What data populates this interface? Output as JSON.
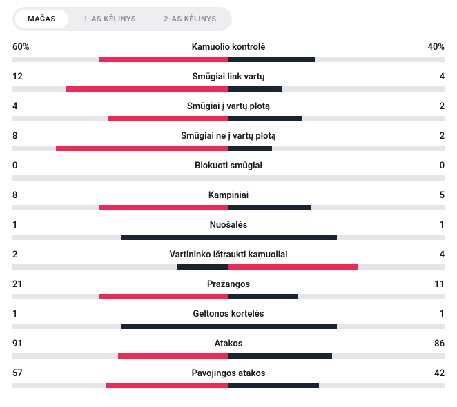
{
  "colors": {
    "track": "#e6e6ea",
    "home": "#ef2855",
    "away": "#1a2332"
  },
  "tabs": [
    {
      "label": "MAČAS",
      "active": true
    },
    {
      "label": "1-AS KĖLINYS",
      "active": false
    },
    {
      "label": "2-AS KĖLINYS",
      "active": false
    }
  ],
  "stats": [
    {
      "label": "Kamuolio kontrolė",
      "home": "60%",
      "away": "40%",
      "home_pct": 30.0,
      "away_pct": 20.0
    },
    {
      "label": "Smūgiai link vartų",
      "home": "12",
      "away": "4",
      "home_pct": 37.5,
      "away_pct": 12.5
    },
    {
      "label": "Smūgiai į vartų plotą",
      "home": "4",
      "away": "2",
      "home_pct": 28.0,
      "away_pct": 17.0
    },
    {
      "label": "Smūgiai ne į vartų plotą",
      "home": "8",
      "away": "2",
      "home_pct": 40.0,
      "away_pct": 10.0
    },
    {
      "label": "Blokuoti smūgiai",
      "home": "0",
      "away": "0",
      "home_pct": 0.0,
      "away_pct": 0.0
    },
    {
      "label": "Kampiniai",
      "home": "8",
      "away": "5",
      "home_pct": 30.0,
      "away_pct": 19.0
    },
    {
      "label": "Nuošalės",
      "home": "1",
      "away": "1",
      "home_pct": 25.0,
      "away_pct": 25.0
    },
    {
      "label": "Vartininko ištraukti kamuoliai",
      "home": "2",
      "away": "4",
      "home_pct": 12.0,
      "away_pct": 30.0
    },
    {
      "label": "Pražangos",
      "home": "21",
      "away": "11",
      "home_pct": 30.0,
      "away_pct": 16.0
    },
    {
      "label": "Geltonos kortelės",
      "home": "1",
      "away": "1",
      "home_pct": 25.0,
      "away_pct": 25.0
    },
    {
      "label": "Atakos",
      "home": "91",
      "away": "86",
      "home_pct": 25.5,
      "away_pct": 24.0
    },
    {
      "label": "Pavojingos atakos",
      "home": "57",
      "away": "42",
      "home_pct": 28.5,
      "away_pct": 21.0
    }
  ]
}
